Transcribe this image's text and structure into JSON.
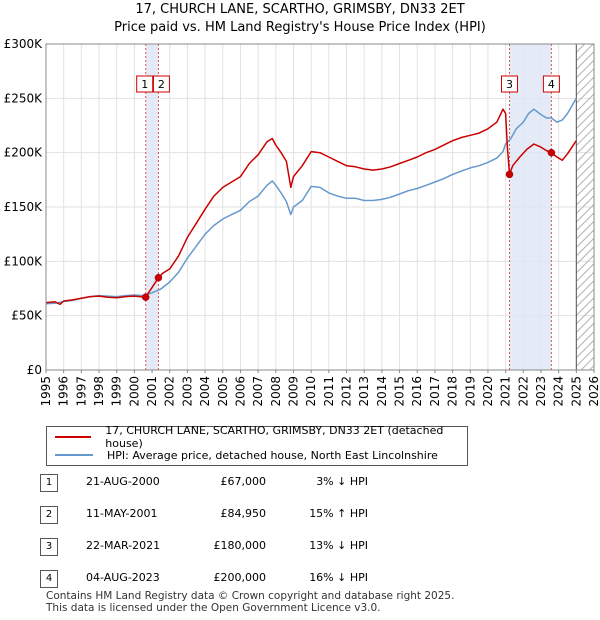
{
  "chart_data": {
    "type": "line",
    "title": "17, CHURCH LANE, SCARTHO, GRIMSBY, DN33 2ET",
    "subtitle": "Price paid vs. HM Land Registry's House Price Index (HPI)",
    "x_range": [
      1995,
      2026
    ],
    "ylim": [
      0,
      300000
    ],
    "y_ticks": [
      {
        "value": 0,
        "label": "£0"
      },
      {
        "value": 50000,
        "label": "£50K"
      },
      {
        "value": 100000,
        "label": "£100K"
      },
      {
        "value": 150000,
        "label": "£150K"
      },
      {
        "value": 200000,
        "label": "£200K"
      },
      {
        "value": 250000,
        "label": "£250K"
      },
      {
        "value": 300000,
        "label": "£300K"
      }
    ],
    "x_ticks": [
      "1995",
      "1996",
      "1997",
      "1998",
      "1999",
      "2000",
      "2001",
      "2002",
      "2003",
      "2004",
      "2005",
      "2006",
      "2007",
      "2008",
      "2009",
      "2010",
      "2011",
      "2012",
      "2013",
      "2014",
      "2015",
      "2016",
      "2017",
      "2018",
      "2019",
      "2020",
      "2021",
      "2022",
      "2023",
      "2024",
      "2025",
      "2026"
    ],
    "grid": true,
    "data_end": 2025.0,
    "shaded_spans": [
      [
        2000.64,
        2001.36
      ],
      [
        2021.22,
        2023.59
      ]
    ],
    "series": [
      {
        "name": "17, CHURCH LANE, SCARTHO, GRIMSBY, DN33 2ET (detached house)",
        "color": "#cc0000",
        "points": [
          [
            1995.0,
            62000
          ],
          [
            1995.5,
            62800
          ],
          [
            1995.8,
            60500
          ],
          [
            1996.0,
            63500
          ],
          [
            1996.5,
            64500
          ],
          [
            1997.0,
            66000
          ],
          [
            1997.5,
            67500
          ],
          [
            1998.0,
            68000
          ],
          [
            1998.5,
            67000
          ],
          [
            1999.0,
            66500
          ],
          [
            1999.5,
            67500
          ],
          [
            2000.0,
            68000
          ],
          [
            2000.64,
            67000
          ],
          [
            2000.8,
            71000
          ],
          [
            2001.0,
            76000
          ],
          [
            2001.36,
            84950
          ],
          [
            2001.6,
            89000
          ],
          [
            2002.0,
            93000
          ],
          [
            2002.5,
            105000
          ],
          [
            2003.0,
            122000
          ],
          [
            2003.5,
            135000
          ],
          [
            2004.0,
            148000
          ],
          [
            2004.5,
            160000
          ],
          [
            2005.0,
            168000
          ],
          [
            2005.5,
            173000
          ],
          [
            2006.0,
            178000
          ],
          [
            2006.5,
            190000
          ],
          [
            2007.0,
            198000
          ],
          [
            2007.5,
            210000
          ],
          [
            2007.8,
            213000
          ],
          [
            2008.0,
            207000
          ],
          [
            2008.3,
            200000
          ],
          [
            2008.6,
            192000
          ],
          [
            2008.85,
            168000
          ],
          [
            2009.0,
            178000
          ],
          [
            2009.5,
            188000
          ],
          [
            2010.0,
            201000
          ],
          [
            2010.5,
            200000
          ],
          [
            2011.0,
            196000
          ],
          [
            2011.5,
            192000
          ],
          [
            2012.0,
            188000
          ],
          [
            2012.5,
            187000
          ],
          [
            2013.0,
            185000
          ],
          [
            2013.5,
            184000
          ],
          [
            2014.0,
            185000
          ],
          [
            2014.5,
            187000
          ],
          [
            2015.0,
            190000
          ],
          [
            2015.5,
            193000
          ],
          [
            2016.0,
            196000
          ],
          [
            2016.5,
            200000
          ],
          [
            2017.0,
            203000
          ],
          [
            2017.5,
            207000
          ],
          [
            2018.0,
            211000
          ],
          [
            2018.5,
            214000
          ],
          [
            2019.0,
            216000
          ],
          [
            2019.5,
            218000
          ],
          [
            2020.0,
            222000
          ],
          [
            2020.5,
            228000
          ],
          [
            2020.85,
            240000
          ],
          [
            2021.0,
            236000
          ],
          [
            2021.1,
            205000
          ],
          [
            2021.22,
            180000
          ],
          [
            2021.4,
            188000
          ],
          [
            2021.8,
            196000
          ],
          [
            2022.2,
            203000
          ],
          [
            2022.6,
            208000
          ],
          [
            2023.0,
            205000
          ],
          [
            2023.3,
            202000
          ],
          [
            2023.59,
            200000
          ],
          [
            2023.9,
            196000
          ],
          [
            2024.2,
            193000
          ],
          [
            2024.5,
            199000
          ],
          [
            2025.0,
            211000
          ]
        ]
      },
      {
        "name": "HPI: Average price, detached house, North East Lincolnshire",
        "color": "#6699cc",
        "points": [
          [
            1995.0,
            61000
          ],
          [
            1995.5,
            61500
          ],
          [
            1996.0,
            63000
          ],
          [
            1996.5,
            64000
          ],
          [
            1997.0,
            66000
          ],
          [
            1997.5,
            67500
          ],
          [
            1998.0,
            68500
          ],
          [
            1998.5,
            68000
          ],
          [
            1999.0,
            67500
          ],
          [
            1999.5,
            68500
          ],
          [
            2000.0,
            69000
          ],
          [
            2000.5,
            68500
          ],
          [
            2001.0,
            71000
          ],
          [
            2001.5,
            74500
          ],
          [
            2002.0,
            81000
          ],
          [
            2002.5,
            90000
          ],
          [
            2003.0,
            103000
          ],
          [
            2003.5,
            114000
          ],
          [
            2004.0,
            125000
          ],
          [
            2004.5,
            133000
          ],
          [
            2005.0,
            139000
          ],
          [
            2005.5,
            143000
          ],
          [
            2006.0,
            147000
          ],
          [
            2006.5,
            155000
          ],
          [
            2007.0,
            160000
          ],
          [
            2007.5,
            170000
          ],
          [
            2007.8,
            174000
          ],
          [
            2008.0,
            170000
          ],
          [
            2008.3,
            163000
          ],
          [
            2008.6,
            155000
          ],
          [
            2008.85,
            143000
          ],
          [
            2009.0,
            150000
          ],
          [
            2009.5,
            156000
          ],
          [
            2010.0,
            169000
          ],
          [
            2010.5,
            168000
          ],
          [
            2011.0,
            163000
          ],
          [
            2011.5,
            160000
          ],
          [
            2012.0,
            158000
          ],
          [
            2012.5,
            158000
          ],
          [
            2013.0,
            156000
          ],
          [
            2013.5,
            156000
          ],
          [
            2014.0,
            157000
          ],
          [
            2014.5,
            159000
          ],
          [
            2015.0,
            162000
          ],
          [
            2015.5,
            165000
          ],
          [
            2016.0,
            167000
          ],
          [
            2016.5,
            170000
          ],
          [
            2017.0,
            173000
          ],
          [
            2017.5,
            176000
          ],
          [
            2018.0,
            180000
          ],
          [
            2018.5,
            183000
          ],
          [
            2019.0,
            186000
          ],
          [
            2019.5,
            188000
          ],
          [
            2020.0,
            191000
          ],
          [
            2020.5,
            195000
          ],
          [
            2020.85,
            201000
          ],
          [
            2021.0,
            208000
          ],
          [
            2021.3,
            213000
          ],
          [
            2021.6,
            222000
          ],
          [
            2022.0,
            228000
          ],
          [
            2022.3,
            236000
          ],
          [
            2022.6,
            240000
          ],
          [
            2023.0,
            235000
          ],
          [
            2023.3,
            232000
          ],
          [
            2023.59,
            232000
          ],
          [
            2023.9,
            228000
          ],
          [
            2024.2,
            230000
          ],
          [
            2024.5,
            236000
          ],
          [
            2025.0,
            250000
          ]
        ]
      }
    ],
    "transactions": [
      {
        "label": "1",
        "x": 2000.64,
        "price": 67000
      },
      {
        "label": "2",
        "x": 2001.36,
        "price": 84950
      },
      {
        "label": "3",
        "x": 2021.22,
        "price": 180000
      },
      {
        "label": "4",
        "x": 2023.59,
        "price": 200000
      }
    ]
  },
  "legend": {
    "property_label": "17, CHURCH LANE, SCARTHO, GRIMSBY, DN33 2ET (detached house)",
    "hpi_label": "HPI: Average price, detached house, North East Lincolnshire"
  },
  "table": [
    {
      "num": "1",
      "date": "21-AUG-2000",
      "price": "£67,000",
      "hpi": "3% ↓ HPI"
    },
    {
      "num": "2",
      "date": "11-MAY-2001",
      "price": "£84,950",
      "hpi": "15% ↑ HPI"
    },
    {
      "num": "3",
      "date": "22-MAR-2021",
      "price": "£180,000",
      "hpi": "13% ↓ HPI"
    },
    {
      "num": "4",
      "date": "04-AUG-2023",
      "price": "£200,000",
      "hpi": "16% ↓ HPI"
    }
  ],
  "footer": {
    "line1": "Contains HM Land Registry data © Crown copyright and database right 2025.",
    "line2": "This data is licensed under the Open Government Licence v3.0."
  }
}
